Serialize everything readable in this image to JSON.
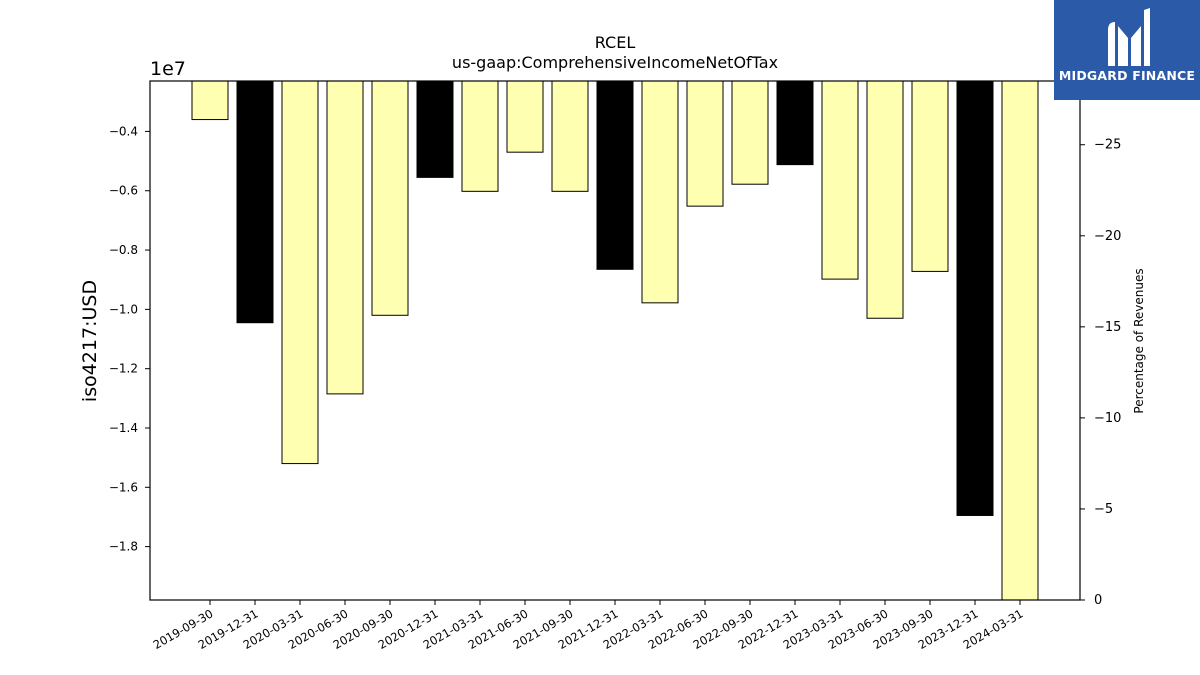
{
  "chart_data": {
    "type": "bar",
    "title": "RCEL",
    "subtitle": "us-gaap:ComprehensiveIncomeNetOfTax",
    "ylabel": "iso4217:USD",
    "y_offset_label": "1e7",
    "y2label": "Percentage of Revenues",
    "categories": [
      "2019-09-30",
      "2019-12-31",
      "2020-03-31",
      "2020-06-30",
      "2020-09-30",
      "2020-12-31",
      "2021-03-31",
      "2021-06-30",
      "2021-09-30",
      "2021-12-31",
      "2022-03-31",
      "2022-06-30",
      "2022-09-30",
      "2022-12-31",
      "2023-03-31",
      "2023-06-30",
      "2023-09-30",
      "2023-12-31",
      "2024-03-31"
    ],
    "values": [
      -3600000,
      -10450000,
      -15200000,
      -12850000,
      -10200000,
      -5550000,
      -6020000,
      -4700000,
      -6020000,
      -8650000,
      -9780000,
      -6520000,
      -5780000,
      -5120000,
      -8980000,
      -10300000,
      -8720000,
      -16950000,
      -19800000
    ],
    "bar_colors": [
      "#ffffb2",
      "#000000",
      "#ffffb2",
      "#ffffb2",
      "#ffffb2",
      "#000000",
      "#ffffb2",
      "#ffffb2",
      "#ffffb2",
      "#000000",
      "#ffffb2",
      "#ffffb2",
      "#ffffb2",
      "#000000",
      "#ffffb2",
      "#ffffb2",
      "#ffffb2",
      "#000000",
      "#ffffb2"
    ],
    "ylim": [
      -19800000,
      -2300000
    ],
    "yticks": [
      -18000000,
      -16000000,
      -14000000,
      -12000000,
      -10000000,
      -8000000,
      -6000000,
      -4000000
    ],
    "ytick_labels": [
      "−1.8",
      "−1.6",
      "−1.4",
      "−1.2",
      "−1.0",
      "−0.8",
      "−0.6",
      "−0.4"
    ],
    "y2lim": [
      0,
      -28.5
    ],
    "y2ticks": [
      0,
      -5,
      -10,
      -15,
      -20,
      -25
    ],
    "y2tick_labels": [
      "0",
      "−5",
      "−10",
      "−15",
      "−20",
      "−25"
    ],
    "grid": false,
    "legend": "none"
  },
  "logo": {
    "text": "MIDGARD FINANCE"
  }
}
